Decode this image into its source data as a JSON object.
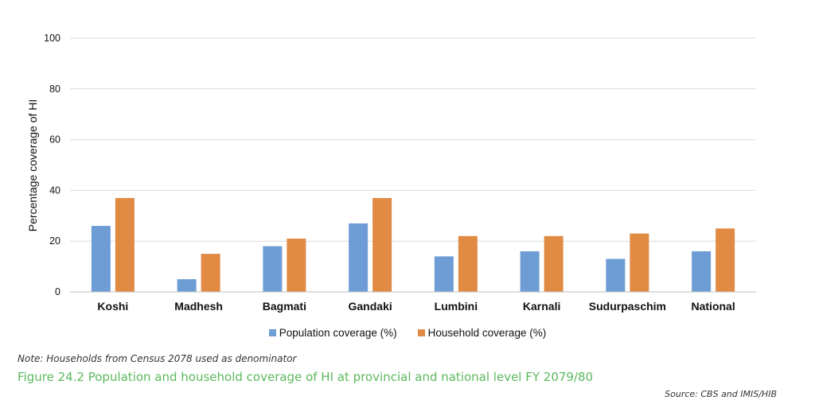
{
  "chart_data": {
    "type": "bar",
    "title": "",
    "xlabel": "",
    "ylabel": "Percentage coverage of HI",
    "ylim": [
      0,
      100
    ],
    "yticks": [
      0,
      20,
      40,
      60,
      80,
      100
    ],
    "grid": true,
    "legend_position": "bottom",
    "categories": [
      "Koshi",
      "Madhesh",
      "Bagmati",
      "Gandaki",
      "Lumbini",
      "Karnali",
      "Sudurpaschim",
      "National"
    ],
    "series": [
      {
        "name": "Population coverage (%)",
        "color": "#6E9DD6",
        "values": [
          26,
          5,
          18,
          27,
          14,
          16,
          13,
          16
        ]
      },
      {
        "name": "Household coverage (%)",
        "color": "#E08A44",
        "values": [
          37,
          15,
          21,
          37,
          22,
          22,
          23,
          25
        ]
      }
    ]
  },
  "note": "Note: Households from Census 2078 used as denominator",
  "caption": {
    "text": "Figure 24.2 Population and household coverage of HI at provincial and national level FY 2079/80",
    "color": "#5BB85D"
  },
  "source": "Source: CBS and IMIS/HIB"
}
